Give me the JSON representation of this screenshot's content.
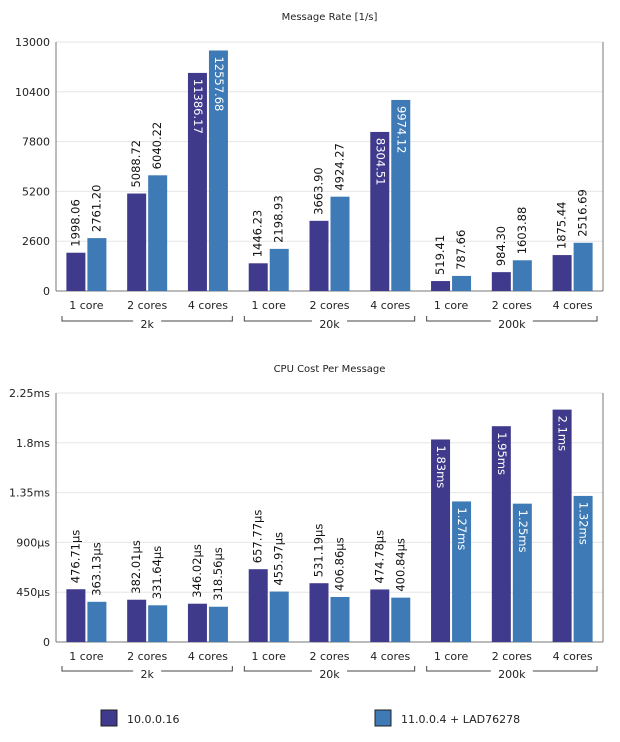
{
  "colors": {
    "series1": "#3f3a8c",
    "series2": "#3d7ab6",
    "grid": "#e6e6e6",
    "axis": "#777777"
  },
  "legend": {
    "series1": "10.0.0.16",
    "series2": "11.0.0.4 + LAD76278"
  },
  "chart_data": [
    {
      "type": "bar",
      "title": "Message Rate [1/s]",
      "ylim": [
        0,
        13000
      ],
      "yticks": [
        0,
        2600,
        5200,
        7800,
        10400,
        13000
      ],
      "ytick_labels": [
        "0",
        "2600",
        "5200",
        "7800",
        "10400",
        "13000"
      ],
      "groups": [
        {
          "label": "2k",
          "categories": [
            "1 core",
            "2 cores",
            "4 cores"
          ]
        },
        {
          "label": "20k",
          "categories": [
            "1 core",
            "2 cores",
            "4 cores"
          ]
        },
        {
          "label": "200k",
          "categories": [
            "1 core",
            "2 cores",
            "4 cores"
          ]
        }
      ],
      "series": [
        {
          "name": "10.0.0.16",
          "values": [
            1998.06,
            5088.72,
            11386.17,
            1446.23,
            3663.9,
            8304.51,
            519.41,
            984.3,
            1875.44
          ],
          "labels": [
            "1998.06",
            "5088.72",
            "11386.17",
            "1446.23",
            "3663.90",
            "8304.51",
            "519.41",
            "984.30",
            "1875.44"
          ],
          "label_inside": [
            false,
            false,
            true,
            false,
            false,
            true,
            false,
            false,
            false
          ]
        },
        {
          "name": "11.0.0.4 + LAD76278",
          "values": [
            2761.2,
            6040.22,
            12557.68,
            2198.93,
            4924.27,
            9974.12,
            787.66,
            1603.88,
            2516.69
          ],
          "labels": [
            "2761.20",
            "6040.22",
            "12557.68",
            "2198.93",
            "4924.27",
            "9974.12",
            "787.66",
            "1603.88",
            "2516.69"
          ],
          "label_inside": [
            false,
            false,
            true,
            false,
            false,
            true,
            false,
            false,
            false
          ]
        }
      ]
    },
    {
      "type": "bar",
      "title": "CPU Cost Per Message",
      "ylim": [
        0,
        2.25
      ],
      "yticks": [
        0,
        0.45,
        0.9,
        1.35,
        1.8,
        2.25
      ],
      "ytick_labels": [
        "0",
        "450µs",
        "900µs",
        "1.35ms",
        "1.8ms",
        "2.25ms"
      ],
      "groups": [
        {
          "label": "2k",
          "categories": [
            "1 core",
            "2 cores",
            "4 cores"
          ]
        },
        {
          "label": "20k",
          "categories": [
            "1 core",
            "2 cores",
            "4 cores"
          ]
        },
        {
          "label": "200k",
          "categories": [
            "1 core",
            "2 cores",
            "4 cores"
          ]
        }
      ],
      "series": [
        {
          "name": "10.0.0.16",
          "values": [
            0.47671,
            0.38201,
            0.34602,
            0.65777,
            0.53119,
            0.47478,
            1.83,
            1.95,
            2.1
          ],
          "labels": [
            "476.71µs",
            "382.01µs",
            "346.02µs",
            "657.77µs",
            "531.19µs",
            "474.78µs",
            "1.83ms",
            "1.95ms",
            "2.1ms"
          ],
          "label_inside": [
            false,
            false,
            false,
            false,
            false,
            false,
            true,
            true,
            true
          ]
        },
        {
          "name": "11.0.0.4 + LAD76278",
          "values": [
            0.36313,
            0.33164,
            0.31856,
            0.45597,
            0.40686,
            0.40084,
            1.27,
            1.25,
            1.32
          ],
          "labels": [
            "363.13µs",
            "331.64µs",
            "318.56µs",
            "455.97µs",
            "406.86µs",
            "400.84µs",
            "1.27ms",
            "1.25ms",
            "1.32ms"
          ],
          "label_inside": [
            false,
            false,
            false,
            false,
            false,
            false,
            true,
            true,
            true
          ]
        }
      ]
    }
  ]
}
